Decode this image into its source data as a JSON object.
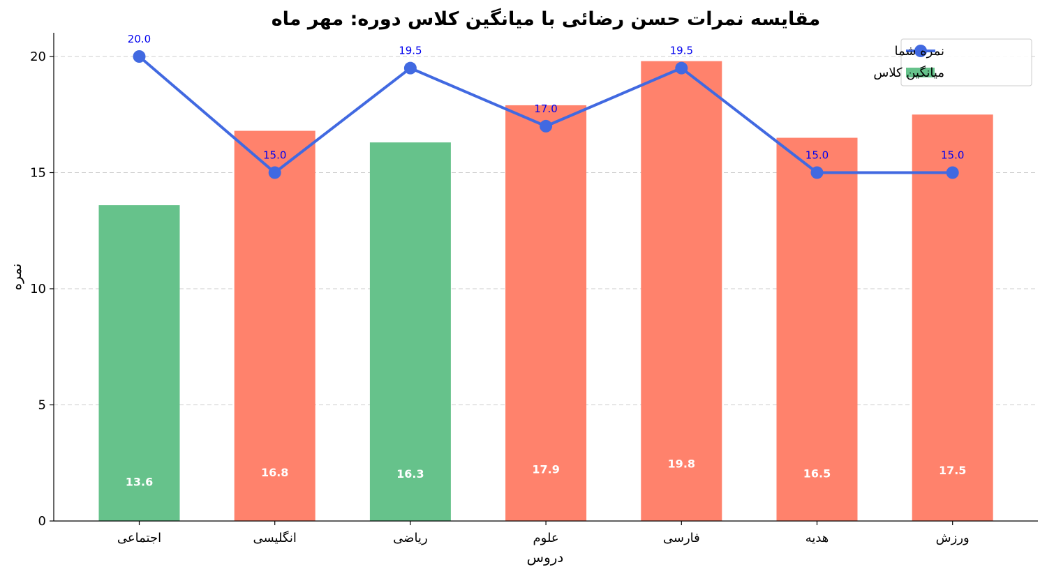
{
  "chart_data": {
    "type": "bar",
    "title": "مقایسه نمرات حسن رضائی با میانگین کلاس دوره:  مهر ماه",
    "xlabel": "دروس",
    "ylabel": "نمره",
    "ylim": [
      0,
      21
    ],
    "yticks": [
      0,
      5,
      10,
      15,
      20
    ],
    "grid": "y, dashed",
    "legend_position": "top-right",
    "categories": [
      "اجتماعی",
      "انگلیسی",
      "ریاضی",
      "علوم",
      "فارسی",
      "هدیه",
      "ورزش"
    ],
    "series": [
      {
        "name": "میانگین کلاس",
        "kind": "bar",
        "values": [
          13.6,
          16.8,
          16.3,
          17.9,
          19.8,
          16.5,
          17.5
        ],
        "value_labels": [
          "13.6",
          "16.8",
          "16.3",
          "17.9",
          "19.8",
          "16.5",
          "17.5"
        ],
        "colors": [
          "#66c28b",
          "#ff826c",
          "#66c28b",
          "#ff826c",
          "#ff826c",
          "#ff826c",
          "#ff826c"
        ]
      },
      {
        "name": "نمره شما",
        "kind": "line",
        "values": [
          20.0,
          15.0,
          19.5,
          17.0,
          19.5,
          15.0,
          15.0
        ],
        "value_labels": [
          "20.0",
          "15.0",
          "19.5",
          "17.0",
          "19.5",
          "15.0",
          "15.0"
        ],
        "color": "#4169e1",
        "label_color": "#0000ee"
      }
    ]
  }
}
